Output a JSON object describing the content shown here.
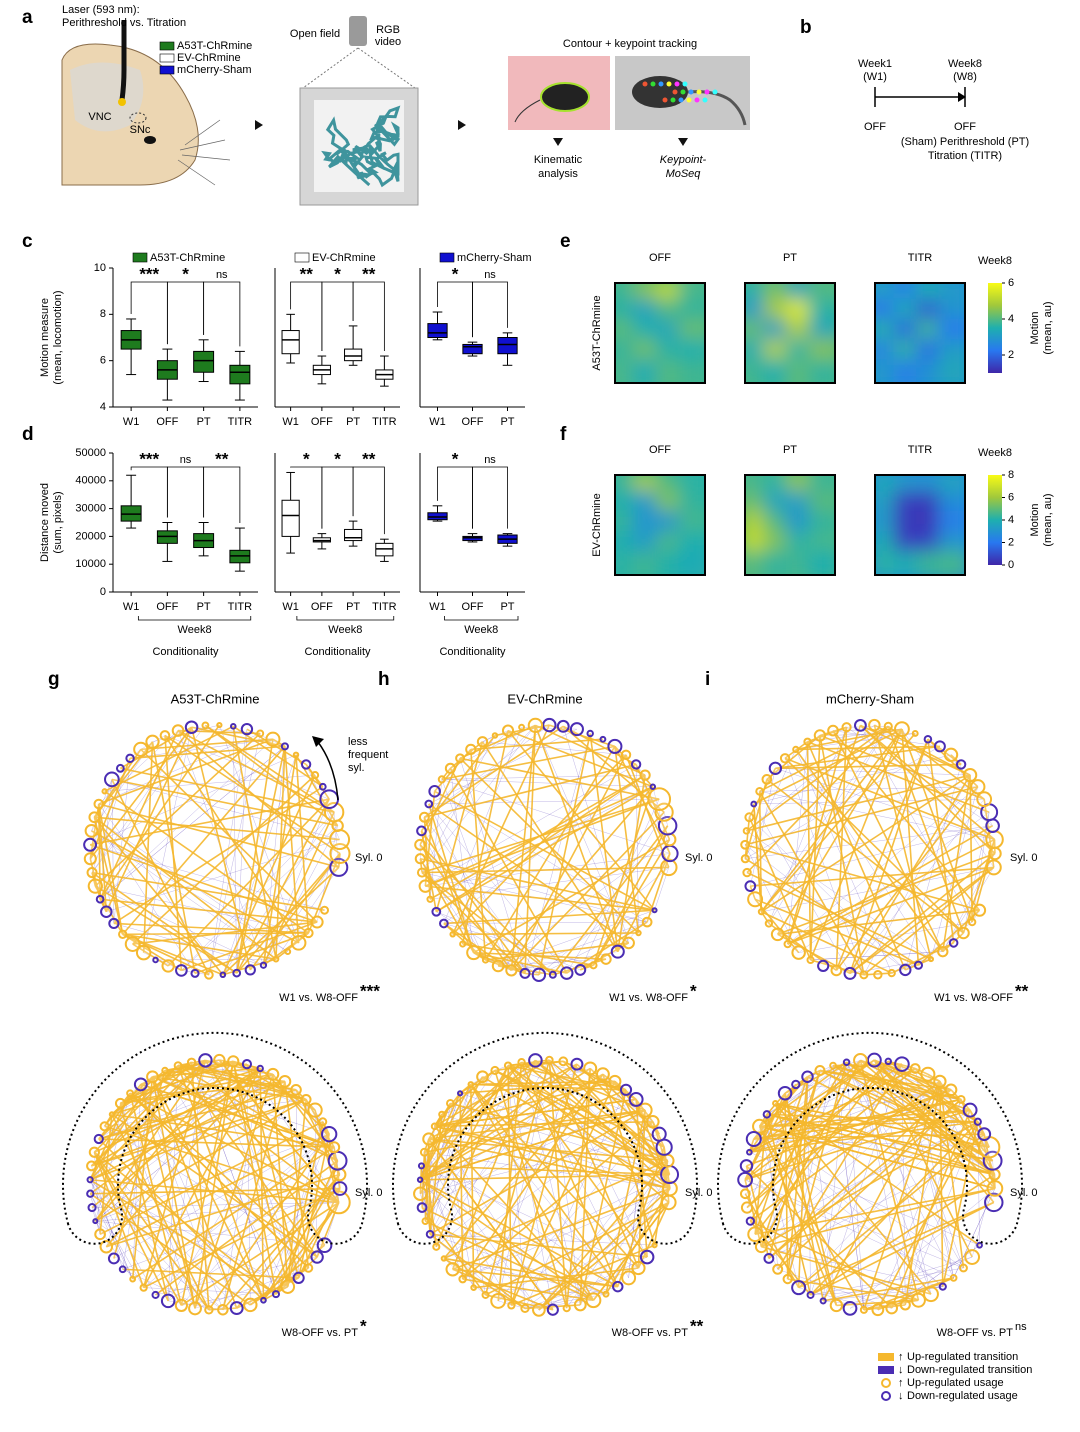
{
  "labels": [
    "a",
    "b",
    "c",
    "d",
    "e",
    "f",
    "g",
    "h",
    "i"
  ],
  "panel_a": {
    "laser": "Laser (593 nm):",
    "protocol": "Perithreshold vs. Titration",
    "groups": [
      {
        "name": "A53T-ChRmine",
        "color": "#1e7b1e"
      },
      {
        "name": "EV-ChRmine",
        "color": "#ffffff"
      },
      {
        "name": "mCherry-Sham",
        "color": "#1010d0"
      }
    ],
    "vnc": "VNC",
    "snc": "SNc",
    "open_field": "Open field",
    "camera": [
      "RGB",
      "video"
    ],
    "tracking": "Contour + keypoint tracking",
    "kinematic": [
      "Kinematic",
      "analysis"
    ],
    "moseq": [
      "Keypoint-",
      "MoSeq"
    ]
  },
  "panel_b": {
    "start": [
      "Week1",
      "(W1)"
    ],
    "end": [
      "Week8",
      "(W8)"
    ],
    "start_state": "OFF",
    "end_state": "OFF",
    "conditions": [
      "(Sham) Perithreshold (PT)",
      "Titration (TITR)"
    ]
  },
  "chart_data": [
    {
      "type": "box",
      "ylabel": [
        "Motion measure",
        "(mean, locomotion)"
      ],
      "ylim": [
        4,
        10
      ],
      "yticks": [
        4,
        6,
        8,
        10
      ],
      "categories": [
        "W1",
        "OFF",
        "PT",
        "TITR"
      ],
      "series": [
        {
          "name": "A53T-ChRmine",
          "color": "#1e7b1e",
          "min": [
            5.4,
            4.3,
            5.1,
            4.3
          ],
          "q1": [
            6.5,
            5.2,
            5.5,
            5.0
          ],
          "median": [
            6.9,
            5.6,
            6.0,
            5.5
          ],
          "q3": [
            7.3,
            6.0,
            6.4,
            5.8
          ],
          "max": [
            7.8,
            6.5,
            6.9,
            6.4
          ]
        }
      ],
      "significance": [
        "***",
        "*",
        "ns"
      ]
    },
    {
      "type": "box",
      "ylim": [
        4,
        10
      ],
      "categories": [
        "W1",
        "OFF",
        "PT",
        "TITR"
      ],
      "series": [
        {
          "name": "EV-ChRmine",
          "color": "#ffffff",
          "min": [
            5.9,
            5.0,
            5.8,
            4.9
          ],
          "q1": [
            6.3,
            5.4,
            6.0,
            5.2
          ],
          "median": [
            6.9,
            5.6,
            6.2,
            5.4
          ],
          "q3": [
            7.3,
            5.8,
            6.5,
            5.6
          ],
          "max": [
            8.0,
            6.2,
            7.5,
            6.2
          ]
        }
      ],
      "significance": [
        "**",
        "*",
        "**"
      ]
    },
    {
      "type": "box",
      "ylim": [
        4,
        10
      ],
      "categories": [
        "W1",
        "OFF",
        "PT"
      ],
      "series": [
        {
          "name": "mCherry-Sham",
          "color": "#1010d0",
          "min": [
            6.9,
            6.2,
            5.8
          ],
          "q1": [
            7.0,
            6.3,
            6.3
          ],
          "median": [
            7.2,
            6.6,
            6.7
          ],
          "q3": [
            7.6,
            6.7,
            7.0
          ],
          "max": [
            8.1,
            6.8,
            7.2
          ]
        }
      ],
      "significance": [
        "*",
        "ns"
      ]
    },
    {
      "type": "box",
      "ylabel": [
        "Distance moved",
        "(sum, pixels)"
      ],
      "ylim": [
        0,
        50000
      ],
      "yticks": [
        0,
        10000,
        20000,
        30000,
        40000,
        50000
      ],
      "categories": [
        "W1",
        "OFF",
        "PT",
        "TITR"
      ],
      "group_label": "Week8",
      "xlabel": "Conditionality",
      "series": [
        {
          "color": "#1e7b1e",
          "min": [
            23000,
            11000,
            13000,
            7500
          ],
          "q1": [
            25500,
            17500,
            16000,
            10500
          ],
          "median": [
            28000,
            20000,
            18500,
            13000
          ],
          "q3": [
            31000,
            22000,
            21000,
            15000
          ],
          "max": [
            42000,
            25000,
            25000,
            23000
          ]
        }
      ],
      "significance": [
        "***",
        "ns",
        "**"
      ]
    },
    {
      "type": "box",
      "ylim": [
        0,
        50000
      ],
      "categories": [
        "W1",
        "OFF",
        "PT",
        "TITR"
      ],
      "group_label": "Week8",
      "xlabel": "Conditionality",
      "series": [
        {
          "color": "#ffffff",
          "min": [
            14000,
            15500,
            16500,
            11000
          ],
          "q1": [
            20000,
            18000,
            18500,
            13000
          ],
          "median": [
            27500,
            18500,
            19500,
            15500
          ],
          "q3": [
            33000,
            19500,
            22500,
            17500
          ],
          "max": [
            43000,
            21000,
            25500,
            19000
          ]
        }
      ],
      "significance": [
        "*",
        "*",
        "**"
      ]
    },
    {
      "type": "box",
      "ylim": [
        0,
        50000
      ],
      "categories": [
        "W1",
        "OFF",
        "PT"
      ],
      "group_label": "Week8",
      "xlabel": "Conditionality",
      "series": [
        {
          "color": "#1010d0",
          "min": [
            25500,
            18000,
            16500
          ],
          "q1": [
            26000,
            18500,
            17500
          ],
          "median": [
            27000,
            19500,
            19000
          ],
          "q3": [
            28500,
            20000,
            20500
          ],
          "max": [
            31000,
            21000,
            21000
          ]
        }
      ],
      "significance": [
        "*",
        "ns"
      ]
    },
    {
      "type": "heatmap",
      "row_label": "A53T-ChRmine",
      "colorbar_title": "Week8",
      "colorbar_label": [
        "Motion",
        "(mean, au)"
      ],
      "zlim": [
        1,
        6
      ],
      "zticks": [
        2,
        4,
        6
      ],
      "panels": [
        {
          "title": "OFF",
          "values": [
            [
              3.8,
              4.5,
              5.2,
              3.9
            ],
            [
              3.6,
              3.2,
              4.0,
              3.7
            ],
            [
              4.1,
              3.5,
              3.3,
              4.2
            ],
            [
              3.7,
              4.3,
              3.6,
              3.5
            ],
            [
              3.9,
              3.4,
              4.0,
              3.8
            ]
          ]
        },
        {
          "title": "PT",
          "values": [
            [
              3.5,
              4.4,
              3.2,
              4.0
            ],
            [
              3.0,
              4.8,
              5.6,
              3.6
            ],
            [
              4.2,
              3.1,
              4.9,
              3.3
            ],
            [
              3.4,
              5.0,
              3.6,
              4.5
            ],
            [
              3.8,
              3.5,
              4.1,
              3.7
            ]
          ]
        },
        {
          "title": "TITR",
          "values": [
            [
              3.2,
              2.4,
              3.5,
              3.0
            ],
            [
              2.2,
              3.4,
              1.8,
              2.9
            ],
            [
              3.6,
              2.0,
              3.8,
              2.3
            ],
            [
              2.5,
              3.7,
              2.1,
              3.1
            ],
            [
              3.0,
              2.4,
              2.8,
              3.3
            ]
          ]
        }
      ]
    },
    {
      "type": "heatmap",
      "row_label": "EV-ChRmine",
      "colorbar_title": "Week8",
      "colorbar_label": [
        "Motion",
        "(mean, au)"
      ],
      "zlim": [
        0,
        8
      ],
      "zticks": [
        0,
        2,
        4,
        6,
        8
      ],
      "panels": [
        {
          "title": "OFF",
          "values": [
            [
              4.5,
              6.2,
              4.8,
              4.2
            ],
            [
              4.0,
              3.2,
              5.5,
              4.3
            ],
            [
              4.4,
              3.0,
              3.1,
              4.6
            ],
            [
              3.9,
              3.3,
              4.7,
              4.0
            ],
            [
              4.2,
              4.5,
              4.1,
              3.8
            ]
          ]
        },
        {
          "title": "PT",
          "values": [
            [
              4.6,
              4.2,
              5.8,
              4.4
            ],
            [
              5.2,
              3.6,
              3.4,
              4.9
            ],
            [
              6.4,
              4.8,
              3.1,
              4.3
            ],
            [
              6.8,
              5.5,
              4.2,
              4.6
            ],
            [
              4.9,
              4.3,
              4.5,
              4.0
            ]
          ]
        },
        {
          "title": "TITR",
          "values": [
            [
              3.8,
              3.2,
              3.0,
              3.6
            ],
            [
              3.5,
              0.6,
              0.5,
              2.8
            ],
            [
              3.2,
              0.5,
              0.4,
              2.2
            ],
            [
              3.9,
              0.6,
              0.7,
              3.1
            ],
            [
              4.2,
              3.8,
              4.4,
              4.6
            ]
          ]
        }
      ]
    }
  ],
  "networks": {
    "syl_label": "Syl. 0",
    "arrow_note": [
      "less",
      "frequent",
      "syl."
    ],
    "up_color": "#f5b82e",
    "down_color": "#4a2db3",
    "graphs": [
      {
        "title": "A53T-ChRmine",
        "comparisons": [
          {
            "label": "W1 vs. W8-OFF",
            "stars": "***"
          },
          {
            "label": "W8-OFF vs. PT",
            "stars": "*"
          }
        ]
      },
      {
        "title": "EV-ChRmine",
        "comparisons": [
          {
            "label": "W1 vs. W8-OFF",
            "stars": "*"
          },
          {
            "label": "W8-OFF vs. PT",
            "stars": "**"
          }
        ]
      },
      {
        "title": "mCherry-Sham",
        "comparisons": [
          {
            "label": "W1 vs. W8-OFF",
            "stars": "**"
          },
          {
            "label": "W8-OFF vs. PT",
            "stars": "ns"
          }
        ]
      }
    ],
    "legend": [
      "Up-regulated transition",
      "Down-regulated transition",
      "Up-regulated usage",
      "Down-regulated usage"
    ],
    "legend_arrows": [
      "↑",
      "↓",
      "↑",
      "↓"
    ]
  }
}
